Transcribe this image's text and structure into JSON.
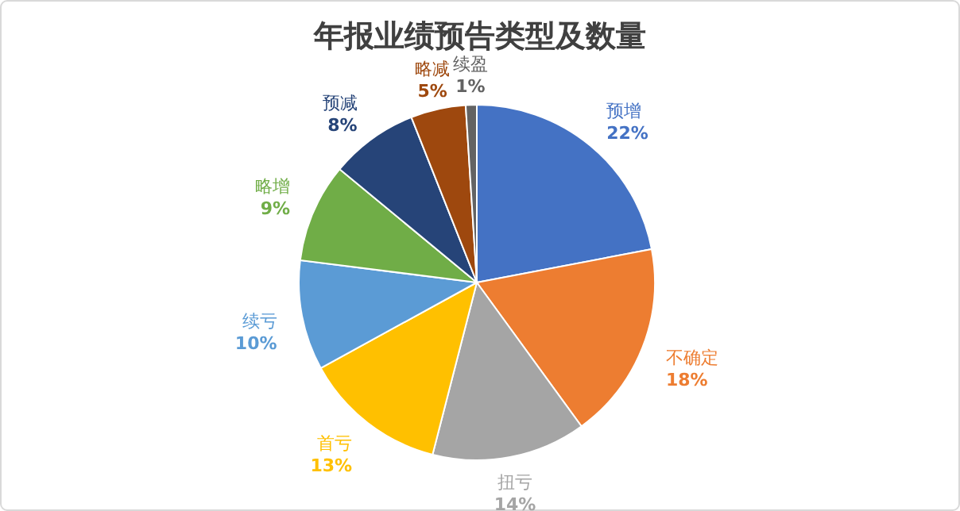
{
  "chart_data": {
    "type": "pie",
    "title": "年报业绩预告类型及数量",
    "categories": [
      "预增",
      "不确定",
      "扭亏",
      "首亏",
      "续亏",
      "略增",
      "预减",
      "略减",
      "续盈"
    ],
    "values": [
      22,
      18,
      14,
      13,
      10,
      9,
      8,
      5,
      1
    ],
    "colors": [
      "#4472c4",
      "#ed7d31",
      "#a5a5a5",
      "#ffc000",
      "#5b9bd5",
      "#70ad47",
      "#264478",
      "#9e480e",
      "#636363"
    ],
    "value_labels": [
      "22%",
      "18%",
      "14%",
      "13%",
      "10%",
      "9%",
      "8%",
      "5%",
      "1%"
    ]
  }
}
